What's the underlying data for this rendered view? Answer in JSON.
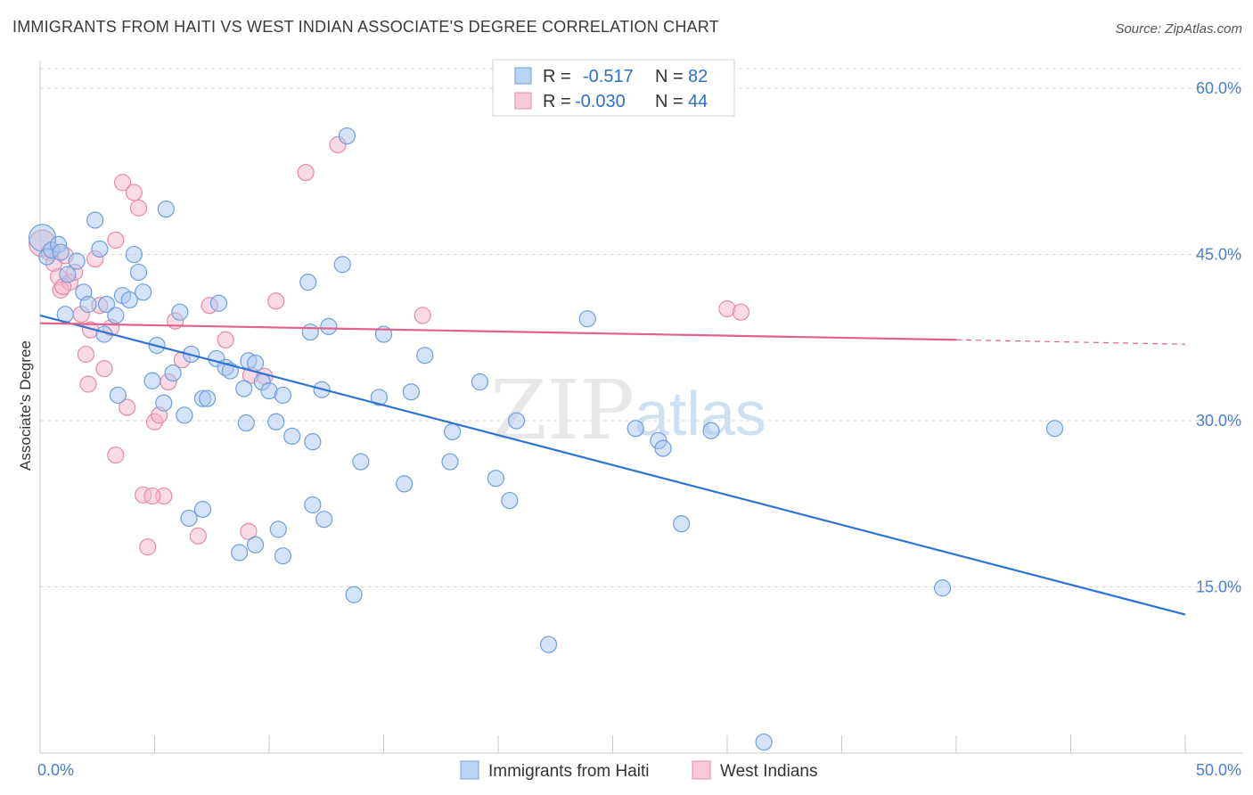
{
  "title": "IMMIGRANTS FROM HAITI VS WEST INDIAN ASSOCIATE'S DEGREE CORRELATION CHART",
  "source": "Source: ZipAtlas.com",
  "watermark": {
    "zip": "ZIP",
    "atlas": "atlas"
  },
  "colors": {
    "haiti_fill": "#a9c8f0",
    "haiti_stroke": "#6f9fdc",
    "haiti_line": "#2f74d0",
    "wi_fill": "#f6b6cc",
    "wi_stroke": "#e58aab",
    "wi_line": "#e0628f",
    "tick_label": "#4a7fd0",
    "grid": "#d8d8d8"
  },
  "legend": {
    "rows": [
      {
        "r_label": "R = ",
        "r_value": "-0.517",
        "n_label": "N = ",
        "n_value": "82"
      },
      {
        "r_label": "R = ",
        "r_value": "-0.030",
        "n_label": "N = ",
        "n_value": "44"
      }
    ]
  },
  "bottom_legend": [
    "Immigrants from Haiti",
    "West Indians"
  ],
  "chart_data": {
    "type": "scatter",
    "title": "IMMIGRANTS FROM HAITI VS WEST INDIAN ASSOCIATE'S DEGREE CORRELATION CHART",
    "xlabel": "",
    "ylabel": "Associate's Degree",
    "xlim": [
      0,
      50
    ],
    "ylim": [
      0,
      62.5
    ],
    "x_tick_labels": [
      "0.0%",
      "50.0%"
    ],
    "y_ticks": [
      15,
      30,
      45,
      60
    ],
    "y_tick_labels": [
      "15.0%",
      "30.0%",
      "45.0%",
      "60.0%"
    ],
    "grid": true,
    "series": [
      {
        "name": "Immigrants from Haiti",
        "R": -0.517,
        "N": 82,
        "trend": {
          "x": [
            0,
            50
          ],
          "y": [
            39.5,
            12.5
          ]
        },
        "points": [
          [
            0.1,
            46.5
          ],
          [
            0.3,
            44.8
          ],
          [
            0.5,
            45.4
          ],
          [
            0.8,
            45.9
          ],
          [
            0.9,
            45.2
          ],
          [
            1.2,
            43.2
          ],
          [
            1.6,
            44.4
          ],
          [
            1.9,
            41.6
          ],
          [
            2.4,
            48.1
          ],
          [
            2.6,
            45.5
          ],
          [
            2.9,
            40.5
          ],
          [
            2.8,
            37.8
          ],
          [
            3.3,
            39.5
          ],
          [
            3.6,
            41.3
          ],
          [
            3.9,
            40.9
          ],
          [
            4.1,
            45.0
          ],
          [
            4.3,
            43.4
          ],
          [
            4.5,
            41.6
          ],
          [
            4.9,
            33.6
          ],
          [
            5.1,
            36.8
          ],
          [
            5.4,
            31.6
          ],
          [
            5.5,
            49.1
          ],
          [
            5.8,
            34.3
          ],
          [
            6.1,
            39.8
          ],
          [
            6.3,
            30.5
          ],
          [
            6.6,
            36.0
          ],
          [
            7.1,
            32.0
          ],
          [
            7.3,
            32.0
          ],
          [
            7.7,
            35.6
          ],
          [
            7.8,
            40.6
          ],
          [
            8.1,
            34.8
          ],
          [
            8.3,
            34.5
          ],
          [
            8.9,
            32.9
          ],
          [
            9.0,
            29.8
          ],
          [
            9.1,
            35.4
          ],
          [
            9.4,
            35.2
          ],
          [
            9.7,
            33.5
          ],
          [
            10.0,
            32.7
          ],
          [
            10.3,
            29.9
          ],
          [
            10.6,
            32.3
          ],
          [
            11.0,
            28.6
          ],
          [
            11.7,
            42.5
          ],
          [
            11.8,
            38.0
          ],
          [
            11.9,
            28.1
          ],
          [
            12.3,
            32.8
          ],
          [
            12.6,
            38.5
          ],
          [
            13.2,
            44.1
          ],
          [
            13.4,
            55.7
          ],
          [
            14.0,
            26.3
          ],
          [
            14.8,
            32.1
          ],
          [
            15.0,
            37.8
          ],
          [
            15.9,
            24.3
          ],
          [
            16.2,
            32.6
          ],
          [
            16.8,
            35.9
          ],
          [
            18.0,
            29.0
          ],
          [
            17.9,
            26.3
          ],
          [
            19.2,
            33.5
          ],
          [
            19.9,
            24.8
          ],
          [
            20.5,
            22.8
          ],
          [
            20.8,
            30.0
          ],
          [
            22.2,
            9.8
          ],
          [
            23.9,
            39.2
          ],
          [
            26.0,
            29.3
          ],
          [
            27.0,
            28.2
          ],
          [
            27.2,
            27.5
          ],
          [
            28.0,
            20.7
          ],
          [
            29.3,
            29.1
          ],
          [
            31.6,
            1.0
          ],
          [
            39.4,
            14.9
          ],
          [
            44.3,
            29.3
          ],
          [
            13.7,
            14.3
          ],
          [
            9.4,
            18.8
          ],
          [
            10.6,
            17.8
          ],
          [
            8.7,
            18.1
          ],
          [
            10.4,
            20.2
          ],
          [
            12.4,
            21.1
          ],
          [
            11.9,
            22.4
          ],
          [
            6.5,
            21.2
          ],
          [
            7.1,
            22.0
          ],
          [
            2.1,
            40.5
          ],
          [
            1.1,
            39.6
          ],
          [
            3.4,
            32.3
          ]
        ]
      },
      {
        "name": "West Indians",
        "R": -0.03,
        "N": 44,
        "trend": {
          "x": [
            0,
            40
          ],
          "y": [
            38.8,
            37.3
          ],
          "dashed_to": [
            50,
            36.9
          ]
        },
        "points": [
          [
            0.1,
            46.0
          ],
          [
            0.4,
            45.2
          ],
          [
            0.6,
            44.2
          ],
          [
            0.8,
            43.0
          ],
          [
            0.9,
            41.8
          ],
          [
            1.1,
            44.9
          ],
          [
            1.3,
            42.5
          ],
          [
            1.5,
            43.4
          ],
          [
            1.8,
            39.6
          ],
          [
            2.0,
            36.0
          ],
          [
            2.2,
            38.2
          ],
          [
            2.4,
            44.6
          ],
          [
            2.6,
            40.4
          ],
          [
            2.8,
            34.7
          ],
          [
            3.1,
            38.4
          ],
          [
            3.3,
            46.3
          ],
          [
            3.3,
            26.9
          ],
          [
            3.6,
            51.5
          ],
          [
            3.8,
            31.2
          ],
          [
            4.1,
            50.6
          ],
          [
            4.3,
            49.2
          ],
          [
            4.5,
            23.3
          ],
          [
            4.7,
            18.6
          ],
          [
            5.0,
            29.9
          ],
          [
            5.2,
            30.5
          ],
          [
            5.4,
            23.2
          ],
          [
            5.6,
            33.5
          ],
          [
            5.9,
            39.0
          ],
          [
            6.2,
            35.5
          ],
          [
            6.9,
            19.6
          ],
          [
            8.1,
            37.3
          ],
          [
            9.2,
            34.1
          ],
          [
            9.8,
            34.0
          ],
          [
            10.3,
            40.8
          ],
          [
            11.6,
            52.4
          ],
          [
            13.0,
            54.9
          ],
          [
            16.7,
            39.5
          ],
          [
            30.0,
            40.1
          ],
          [
            30.6,
            39.8
          ],
          [
            2.1,
            33.3
          ],
          [
            1.0,
            42.1
          ],
          [
            4.9,
            23.2
          ],
          [
            9.1,
            20.0
          ],
          [
            7.4,
            40.4
          ]
        ]
      }
    ]
  }
}
